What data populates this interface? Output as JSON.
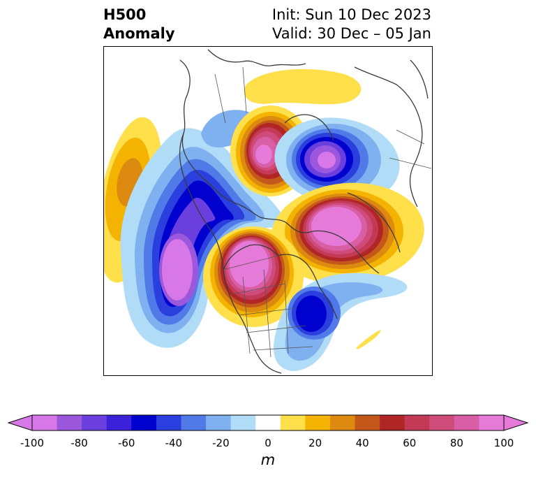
{
  "title": {
    "left_line1": "H500",
    "left_line2": "Anomaly",
    "right_line1": "Init: Sun 10 Dec 2023",
    "right_line2": "Valid: 30 Dec – 05 Jan"
  },
  "colorbar": {
    "unit": "m",
    "tick_labels": [
      "-100",
      "-80",
      "-60",
      "-40",
      "-20",
      "0",
      "20",
      "40",
      "60",
      "80",
      "100"
    ],
    "tick_values": [
      -100,
      -80,
      -60,
      -40,
      -20,
      0,
      20,
      40,
      60,
      80,
      100
    ],
    "colors": [
      "#d777e8",
      "#9c58dd",
      "#6a3fdd",
      "#3b22d8",
      "#0000cf",
      "#2a3fdd",
      "#4f7ae8",
      "#7fb1f0",
      "#b0dcf8",
      "#ffffff",
      "#ffe04a",
      "#f3b300",
      "#dd8a10",
      "#c4581a",
      "#b02626",
      "#c23a55",
      "#cf4c7a",
      "#d85ea6",
      "#e67ad8"
    ],
    "extend": "both"
  },
  "map": {
    "projection": "north-polar-stereographic",
    "region": "Northern Hemisphere / North America",
    "variable": "500 hPa geopotential height anomaly"
  }
}
